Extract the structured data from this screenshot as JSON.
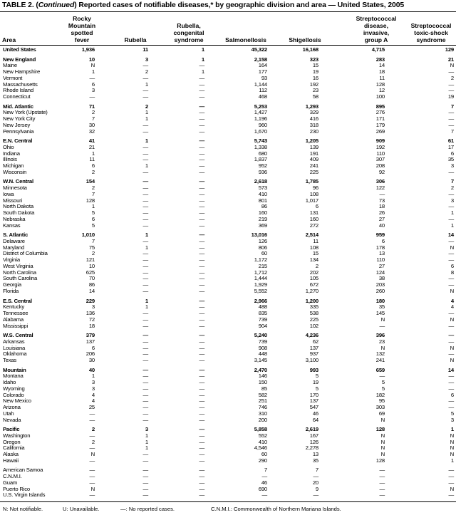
{
  "title": {
    "prefix": "TABLE 2. (",
    "italic": "Continued",
    "suffix": ") Reported cases of notifiable diseases,* by geographic division and area — United States, 2005"
  },
  "columns": {
    "area": "Area",
    "rmsf": [
      "Rocky",
      "Mountain",
      "spotted",
      "fever"
    ],
    "rubella": [
      "Rubella"
    ],
    "crs": [
      "Rubella,",
      "congenital",
      "syndrome"
    ],
    "salmonellosis": [
      "Salmonellosis"
    ],
    "shigellosis": [
      "Shigellosis"
    ],
    "strep": [
      "Streptococcal",
      "disease,",
      "invasive,",
      "group  A"
    ],
    "stss": [
      "Streptococcal",
      "toxic-shock",
      "syndrome"
    ]
  },
  "groups": [
    {
      "bold_first": true,
      "rows": [
        [
          "United States",
          "1,936",
          "11",
          "1",
          "45,322",
          "16,168",
          "4,715",
          "129"
        ]
      ]
    },
    {
      "bold_first": true,
      "rows": [
        [
          "New England",
          "10",
          "3",
          "1",
          "2,158",
          "323",
          "283",
          "21"
        ],
        [
          "Maine",
          "N",
          "—",
          "—",
          "164",
          "15",
          "14",
          "N"
        ],
        [
          "New Hampshire",
          "1",
          "2",
          "1",
          "177",
          "19",
          "18",
          "—"
        ],
        [
          "Vermont",
          "—",
          "—",
          "—",
          "93",
          "16",
          "11",
          "2"
        ],
        [
          "Massachusetts",
          "6",
          "1",
          "—",
          "1,144",
          "192",
          "128",
          "—"
        ],
        [
          "Rhode Island",
          "3",
          "—",
          "—",
          "112",
          "23",
          "12",
          "—"
        ],
        [
          "Connecticut",
          "—",
          "—",
          "—",
          "468",
          "58",
          "100",
          "19"
        ]
      ]
    },
    {
      "bold_first": true,
      "rows": [
        [
          "Mid. Atlantic",
          "71",
          "2",
          "—",
          "5,253",
          "1,293",
          "895",
          "7"
        ],
        [
          "New York (Upstate)",
          "2",
          "1",
          "—",
          "1,427",
          "329",
          "276",
          "—"
        ],
        [
          "New York City",
          "7",
          "1",
          "—",
          "1,196",
          "416",
          "171",
          "—"
        ],
        [
          "New Jersey",
          "30",
          "—",
          "—",
          "960",
          "318",
          "179",
          "—"
        ],
        [
          "Pennsylvania",
          "32",
          "—",
          "—",
          "1,670",
          "230",
          "269",
          "7"
        ]
      ]
    },
    {
      "bold_first": true,
      "rows": [
        [
          "E.N. Central",
          "41",
          "1",
          "—",
          "5,743",
          "1,205",
          "909",
          "61"
        ],
        [
          "Ohio",
          "21",
          "—",
          "—",
          "1,338",
          "139",
          "192",
          "17"
        ],
        [
          "Indiana",
          "1",
          "—",
          "—",
          "680",
          "191",
          "110",
          "6"
        ],
        [
          "Illinois",
          "11",
          "—",
          "—",
          "1,837",
          "409",
          "307",
          "35"
        ],
        [
          "Michigan",
          "6",
          "1",
          "—",
          "952",
          "241",
          "208",
          "3"
        ],
        [
          "Wisconsin",
          "2",
          "—",
          "—",
          "936",
          "225",
          "92",
          "—"
        ]
      ]
    },
    {
      "bold_first": true,
      "rows": [
        [
          "W.N. Central",
          "154",
          "—",
          "—",
          "2,618",
          "1,785",
          "306",
          "7"
        ],
        [
          "Minnesota",
          "2",
          "—",
          "—",
          "573",
          "96",
          "122",
          "2"
        ],
        [
          "Iowa",
          "7",
          "—",
          "—",
          "410",
          "108",
          "—",
          "—"
        ],
        [
          "Missouri",
          "128",
          "—",
          "—",
          "801",
          "1,017",
          "73",
          "3"
        ],
        [
          "North Dakota",
          "1",
          "—",
          "—",
          "86",
          "6",
          "18",
          "—"
        ],
        [
          "South Dakota",
          "5",
          "—",
          "—",
          "160",
          "131",
          "26",
          "1"
        ],
        [
          "Nebraska",
          "6",
          "—",
          "—",
          "219",
          "160",
          "27",
          "—"
        ],
        [
          "Kansas",
          "5",
          "—",
          "—",
          "369",
          "272",
          "40",
          "1"
        ]
      ]
    },
    {
      "bold_first": true,
      "rows": [
        [
          "S. Atlantic",
          "1,010",
          "1",
          "—",
          "13,016",
          "2,514",
          "959",
          "14"
        ],
        [
          "Delaware",
          "7",
          "—",
          "—",
          "126",
          "11",
          "6",
          "—"
        ],
        [
          "Maryland",
          "75",
          "1",
          "—",
          "806",
          "108",
          "178",
          "N"
        ],
        [
          "District of Columbia",
          "2",
          "—",
          "—",
          "60",
          "15",
          "13",
          "—"
        ],
        [
          "Virginia",
          "121",
          "—",
          "—",
          "1,172",
          "134",
          "110",
          "—"
        ],
        [
          "West Virginia",
          "10",
          "—",
          "—",
          "215",
          "2",
          "27",
          "6"
        ],
        [
          "North Carolina",
          "625",
          "—",
          "—",
          "1,712",
          "202",
          "124",
          "8"
        ],
        [
          "South Carolina",
          "70",
          "—",
          "—",
          "1,444",
          "105",
          "38",
          "—"
        ],
        [
          "Georgia",
          "86",
          "—",
          "—",
          "1,929",
          "672",
          "203",
          "—"
        ],
        [
          "Florida",
          "14",
          "—",
          "—",
          "5,552",
          "1,270",
          "260",
          "N"
        ]
      ]
    },
    {
      "bold_first": true,
      "rows": [
        [
          "E.S. Central",
          "229",
          "1",
          "—",
          "2,966",
          "1,200",
          "180",
          "4"
        ],
        [
          "Kentucky",
          "3",
          "1",
          "—",
          "488",
          "335",
          "35",
          "4"
        ],
        [
          "Tennessee",
          "136",
          "—",
          "—",
          "835",
          "538",
          "145",
          "—"
        ],
        [
          "Alabama",
          "72",
          "—",
          "—",
          "739",
          "225",
          "N",
          "N"
        ],
        [
          "Mississippi",
          "18",
          "—",
          "—",
          "904",
          "102",
          "—",
          "—"
        ]
      ]
    },
    {
      "bold_first": true,
      "rows": [
        [
          "W.S. Central",
          "379",
          "—",
          "—",
          "5,240",
          "4,236",
          "396",
          "—"
        ],
        [
          "Arkansas",
          "137",
          "—",
          "—",
          "739",
          "62",
          "23",
          "—"
        ],
        [
          "Louisiana",
          "6",
          "—",
          "—",
          "908",
          "137",
          "N",
          "N"
        ],
        [
          "Oklahoma",
          "206",
          "—",
          "—",
          "448",
          "937",
          "132",
          "—"
        ],
        [
          "Texas",
          "30",
          "—",
          "—",
          "3,145",
          "3,100",
          "241",
          "N"
        ]
      ]
    },
    {
      "bold_first": true,
      "rows": [
        [
          "Mountain",
          "40",
          "—",
          "—",
          "2,470",
          "993",
          "659",
          "14"
        ],
        [
          "Montana",
          "1",
          "—",
          "—",
          "146",
          "5",
          "—",
          "—"
        ],
        [
          "Idaho",
          "3",
          "—",
          "—",
          "150",
          "19",
          "5",
          "—"
        ],
        [
          "Wyoming",
          "3",
          "—",
          "—",
          "85",
          "5",
          "5",
          "—"
        ],
        [
          "Colorado",
          "4",
          "—",
          "—",
          "582",
          "170",
          "182",
          "6"
        ],
        [
          "New Mexico",
          "4",
          "—",
          "—",
          "251",
          "137",
          "95",
          "—"
        ],
        [
          "Arizona",
          "25",
          "—",
          "—",
          "746",
          "547",
          "303",
          "—"
        ],
        [
          "Utah",
          "—",
          "—",
          "—",
          "310",
          "46",
          "69",
          "5"
        ],
        [
          "Nevada",
          "—",
          "—",
          "—",
          "200",
          "64",
          "N",
          "3"
        ]
      ]
    },
    {
      "bold_first": true,
      "rows": [
        [
          "Pacific",
          "2",
          "3",
          "—",
          "5,858",
          "2,619",
          "128",
          "1"
        ],
        [
          "Washington",
          "—",
          "1",
          "—",
          "552",
          "167",
          "N",
          "N"
        ],
        [
          "Oregon",
          "2",
          "1",
          "—",
          "410",
          "126",
          "N",
          "N"
        ],
        [
          "California",
          "—",
          "1",
          "—",
          "4,546",
          "2,278",
          "N",
          "N"
        ],
        [
          "Alaska",
          "N",
          "—",
          "—",
          "60",
          "13",
          "N",
          "N"
        ],
        [
          "Hawaii",
          "—",
          "—",
          "—",
          "290",
          "35",
          "128",
          "1"
        ]
      ]
    },
    {
      "bold_first": false,
      "rows": [
        [
          "American Samoa",
          "—",
          "—",
          "—",
          "7",
          "7",
          "—",
          "—"
        ],
        [
          "C.N.M.I.",
          "—",
          "—",
          "—",
          "—",
          "—",
          "—",
          "—"
        ],
        [
          "Guam",
          "—",
          "—",
          "—",
          "46",
          "20",
          "—",
          "—"
        ],
        [
          "Puerto Rico",
          "N",
          "—",
          "—",
          "690",
          "9",
          "—",
          "N"
        ],
        [
          "U.S. Virgin Islands",
          "—",
          "—",
          "—",
          "—",
          "—",
          "—",
          "—"
        ]
      ]
    }
  ],
  "footnotes": [
    "N: Not notifiable.",
    "U: Unavailable.",
    "—: No reported cases.",
    "C.N.M.I.: Commonwealth of Northern Mariana Islands."
  ]
}
